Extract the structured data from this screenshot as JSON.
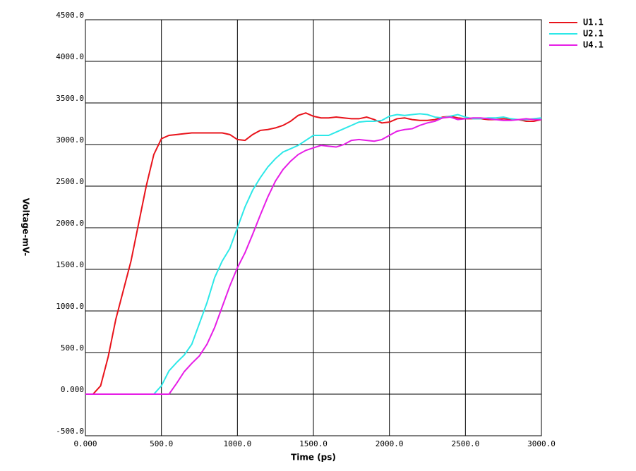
{
  "chart_data": {
    "type": "line",
    "x_label": "Time (ps)",
    "y_label": "Voltage-mV-",
    "x": [
      0,
      50,
      100,
      150,
      200,
      250,
      300,
      350,
      400,
      450,
      500,
      550,
      600,
      650,
      700,
      750,
      800,
      850,
      900,
      950,
      1000,
      1050,
      1100,
      1150,
      1200,
      1250,
      1300,
      1350,
      1400,
      1450,
      1500,
      1550,
      1600,
      1650,
      1700,
      1750,
      1800,
      1850,
      1900,
      1950,
      2000,
      2050,
      2100,
      2150,
      2200,
      2250,
      2300,
      2350,
      2400,
      2450,
      2500,
      2550,
      2600,
      2650,
      2700,
      2750,
      2800,
      2850,
      2900,
      2950,
      3000
    ],
    "series": [
      {
        "name": "U1.1",
        "color": "#e8131b",
        "values": [
          0,
          0,
          100,
          450,
          900,
          1250,
          1600,
          2050,
          2500,
          2880,
          3070,
          3110,
          3120,
          3130,
          3140,
          3140,
          3140,
          3140,
          3140,
          3120,
          3060,
          3050,
          3120,
          3170,
          3180,
          3200,
          3230,
          3280,
          3350,
          3380,
          3340,
          3320,
          3320,
          3330,
          3320,
          3310,
          3310,
          3330,
          3300,
          3260,
          3270,
          3310,
          3320,
          3300,
          3290,
          3290,
          3300,
          3330,
          3340,
          3320,
          3310,
          3310,
          3310,
          3300,
          3300,
          3310,
          3300,
          3300,
          3280,
          3280,
          3300
        ]
      },
      {
        "name": "U2.1",
        "color": "#2de8e8",
        "values": [
          0,
          0,
          0,
          0,
          0,
          0,
          0,
          0,
          0,
          0,
          100,
          280,
          380,
          470,
          600,
          850,
          1100,
          1400,
          1600,
          1750,
          2000,
          2250,
          2450,
          2600,
          2730,
          2830,
          2910,
          2950,
          2990,
          3050,
          3110,
          3110,
          3110,
          3150,
          3190,
          3230,
          3270,
          3280,
          3280,
          3290,
          3340,
          3360,
          3350,
          3360,
          3370,
          3360,
          3330,
          3320,
          3340,
          3360,
          3330,
          3310,
          3310,
          3320,
          3320,
          3330,
          3310,
          3300,
          3300,
          3310,
          3320
        ]
      },
      {
        "name": "U4.1",
        "color": "#e61ee6",
        "values": [
          0,
          0,
          0,
          0,
          0,
          0,
          0,
          0,
          0,
          0,
          0,
          0,
          130,
          270,
          370,
          460,
          600,
          800,
          1050,
          1300,
          1520,
          1700,
          1920,
          2150,
          2370,
          2560,
          2700,
          2800,
          2880,
          2930,
          2960,
          2990,
          2980,
          2970,
          3000,
          3050,
          3060,
          3050,
          3040,
          3060,
          3110,
          3160,
          3180,
          3190,
          3230,
          3260,
          3280,
          3320,
          3330,
          3300,
          3310,
          3320,
          3320,
          3310,
          3300,
          3290,
          3290,
          3300,
          3310,
          3300,
          3300
        ]
      }
    ],
    "xlim": [
      0,
      3000
    ],
    "xticks": [
      {
        "value": 0,
        "label": "0.000"
      },
      {
        "value": 500,
        "label": "500.0"
      },
      {
        "value": 1000,
        "label": "1000.0"
      },
      {
        "value": 1500,
        "label": "1500.0"
      },
      {
        "value": 2000,
        "label": "2000.0"
      },
      {
        "value": 2500,
        "label": "2500.0"
      },
      {
        "value": 3000,
        "label": "3000.0"
      }
    ],
    "ylim": [
      -500,
      4500
    ],
    "yticks": [
      {
        "value": -500,
        "label": "-500.0"
      },
      {
        "value": 0,
        "label": "0.000"
      },
      {
        "value": 500,
        "label": "500.0"
      },
      {
        "value": 1000,
        "label": "1000.0"
      },
      {
        "value": 1500,
        "label": "1500.0"
      },
      {
        "value": 2000,
        "label": "2000.0"
      },
      {
        "value": 2500,
        "label": "2500.0"
      },
      {
        "value": 3000,
        "label": "3000.0"
      },
      {
        "value": 3500,
        "label": "3500.0"
      },
      {
        "value": 4000,
        "label": "4000.0"
      },
      {
        "value": 4500,
        "label": "4500.0"
      }
    ],
    "grid": true,
    "legend": "upper right outside"
  }
}
